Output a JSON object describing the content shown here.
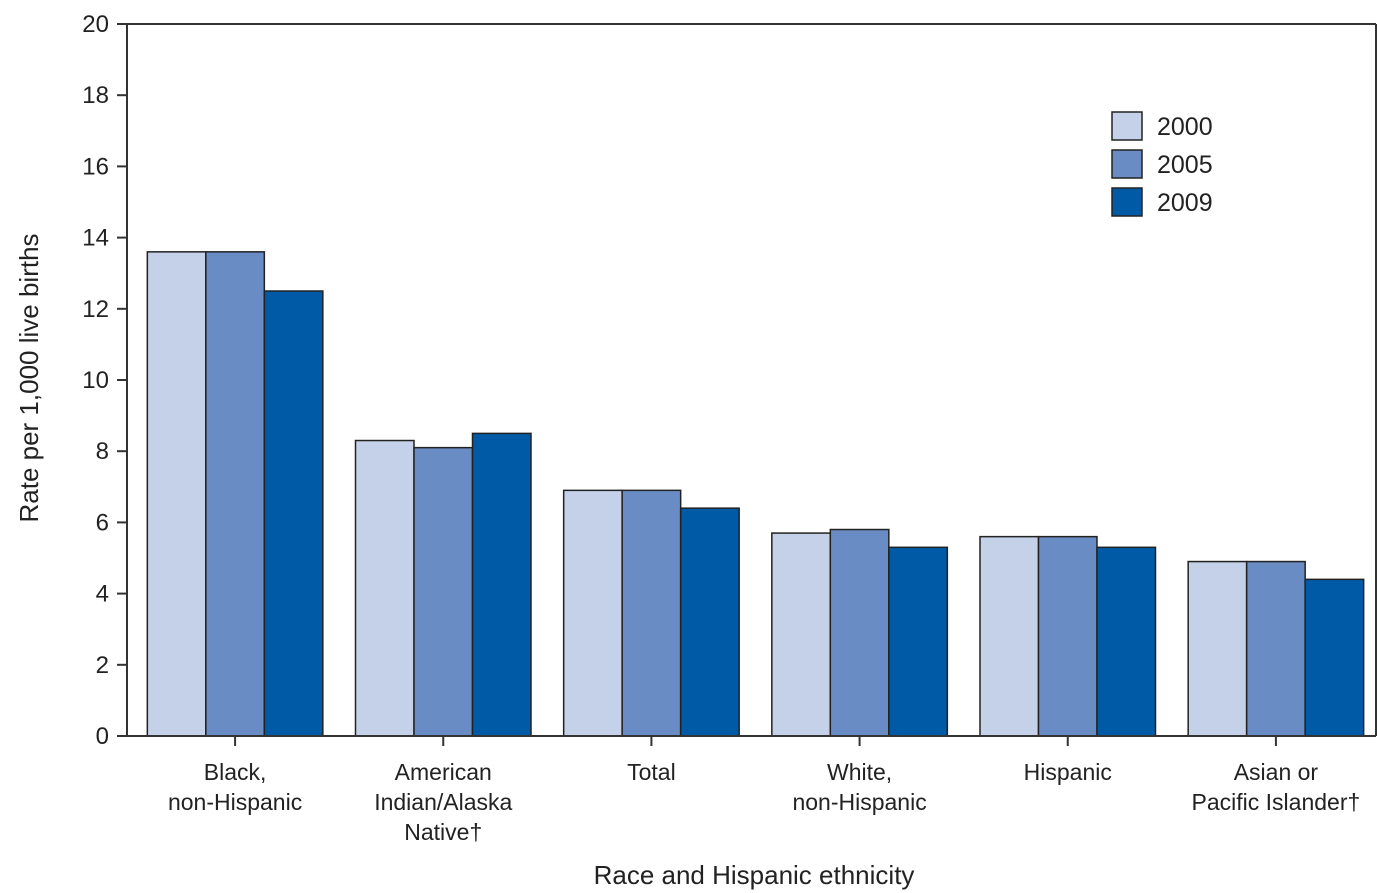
{
  "chart_data": {
    "type": "bar",
    "title": "",
    "xlabel": "Race and Hispanic ethnicity",
    "ylabel": "Rate per 1,000 live births",
    "ylim": [
      0,
      20
    ],
    "yticks": [
      "0",
      "2",
      "4",
      "6",
      "8",
      "10",
      "12",
      "14",
      "16",
      "18",
      "20"
    ],
    "grid": false,
    "legend_position": "top-right",
    "categories": [
      [
        "Black,",
        "non-Hispanic"
      ],
      [
        "American",
        "Indian/Alaska",
        "Native†"
      ],
      [
        "Total"
      ],
      [
        "White,",
        "non-Hispanic"
      ],
      [
        "Hispanic"
      ],
      [
        "Asian or",
        "Pacific Islander†"
      ]
    ],
    "series": [
      {
        "name": "2000",
        "color": "#c5d1e8",
        "values": [
          13.6,
          8.3,
          6.9,
          5.7,
          5.6,
          4.9
        ]
      },
      {
        "name": "2005",
        "color": "#6a8cc4",
        "values": [
          13.6,
          8.1,
          6.9,
          5.8,
          5.6,
          4.9
        ]
      },
      {
        "name": "2009",
        "color": "#005aa6",
        "values": [
          12.5,
          8.5,
          6.4,
          5.3,
          5.3,
          4.4
        ]
      }
    ]
  }
}
